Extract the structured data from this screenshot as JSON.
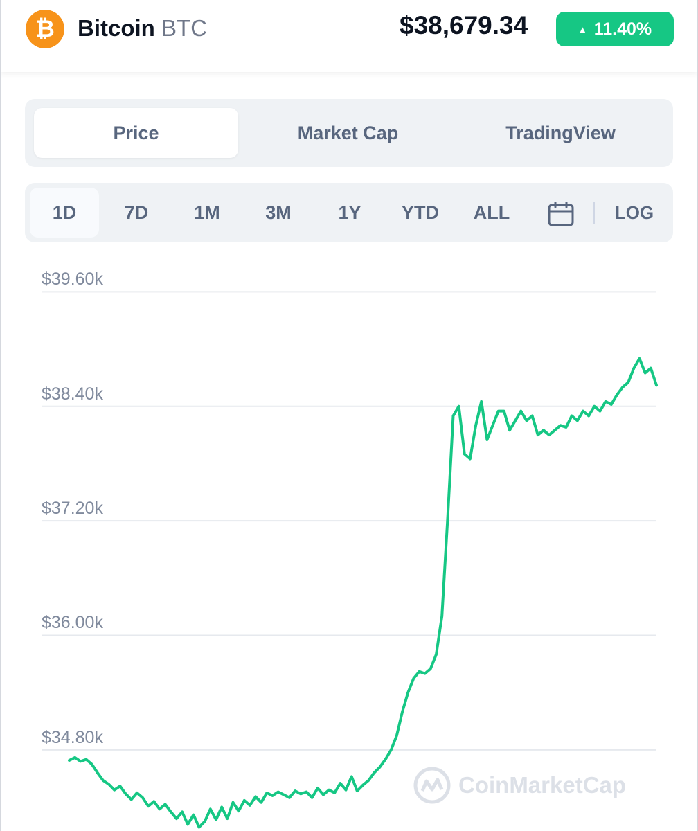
{
  "header": {
    "coin_logo_glyph": "₿",
    "coin_name": "Bitcoin",
    "coin_symbol": "BTC",
    "price": "$38,679.34",
    "change": "11.40%",
    "change_direction_icon": "caret-up-icon",
    "change_color": "#16c784",
    "brand_color": "#f7931a"
  },
  "tabs": [
    {
      "label": "Price",
      "active": true
    },
    {
      "label": "Market Cap",
      "active": false
    },
    {
      "label": "TradingView",
      "active": false
    }
  ],
  "ranges": [
    {
      "label": "1D",
      "active": true
    },
    {
      "label": "7D",
      "active": false
    },
    {
      "label": "1M",
      "active": false
    },
    {
      "label": "3M",
      "active": false
    },
    {
      "label": "1Y",
      "active": false
    },
    {
      "label": "YTD",
      "active": false
    },
    {
      "label": "ALL",
      "active": false
    }
  ],
  "calendar_icon": "calendar-icon",
  "log_label": "LOG",
  "watermark": {
    "text": "CoinMarketCap",
    "icon": "coinmarketcap-logo-icon"
  },
  "chart_data": {
    "type": "line",
    "y_tick_labels": [
      "$39.60k",
      "$38.40k",
      "$37.20k",
      "$36.00k",
      "$34.80k"
    ],
    "y_ticks": [
      39600,
      38400,
      37200,
      36000,
      34800
    ],
    "ylim": [
      33950,
      39900
    ],
    "grid": true,
    "line_color": "#16c784",
    "series": [
      {
        "values": [
          34690,
          34720,
          34680,
          34700,
          34650,
          34560,
          34480,
          34440,
          34380,
          34420,
          34340,
          34280,
          34350,
          34300,
          34210,
          34260,
          34180,
          34230,
          34150,
          34080,
          34150,
          34020,
          34120,
          33990,
          34050,
          34180,
          34070,
          34200,
          34080,
          34250,
          34160,
          34270,
          34220,
          34310,
          34250,
          34350,
          34320,
          34360,
          34330,
          34300,
          34370,
          34340,
          34360,
          34300,
          34400,
          34330,
          34380,
          34350,
          34450,
          34380,
          34520,
          34370,
          34430,
          34480,
          34560,
          34620,
          34700,
          34800,
          34950,
          35200,
          35400,
          35550,
          35620,
          35600,
          35650,
          35800,
          36200,
          37200,
          38300,
          38400,
          37900,
          37850,
          38200,
          38450,
          38050,
          38200,
          38350,
          38350,
          38150,
          38250,
          38350,
          38250,
          38300,
          38100,
          38150,
          38100,
          38150,
          38200,
          38180,
          38300,
          38250,
          38350,
          38300,
          38400,
          38350,
          38450,
          38420,
          38520,
          38600,
          38650,
          38800,
          38900,
          38750,
          38800,
          38620
        ]
      }
    ]
  }
}
